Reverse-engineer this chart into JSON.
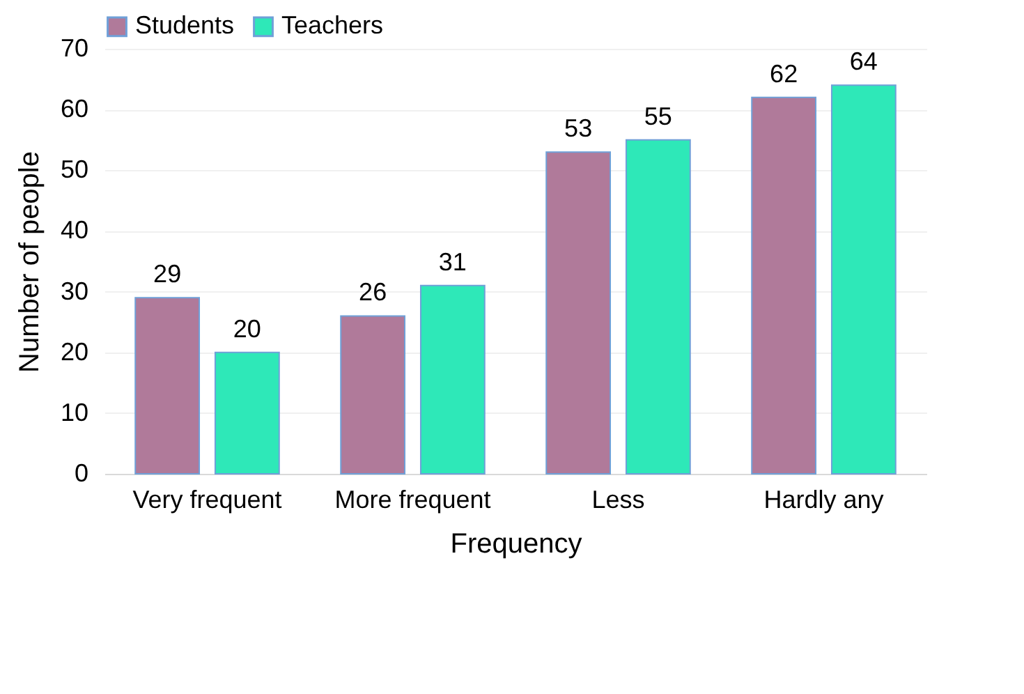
{
  "chart_data": {
    "type": "bar",
    "xlabel": "Frequency",
    "ylabel": "Number of people",
    "categories": [
      "Very frequent",
      "More frequent",
      "Less",
      "Hardly any"
    ],
    "series": [
      {
        "name": "Students",
        "color": "#b07a9a",
        "values": [
          29,
          26,
          53,
          62
        ]
      },
      {
        "name": "Teachers",
        "color": "#2ee8b8",
        "values": [
          20,
          31,
          55,
          64
        ]
      }
    ],
    "ylim": [
      0,
      70
    ],
    "yticks": [
      0,
      10,
      20,
      30,
      40,
      50,
      60,
      70
    ],
    "grid": "y",
    "legend": "top",
    "data_labels": true
  }
}
